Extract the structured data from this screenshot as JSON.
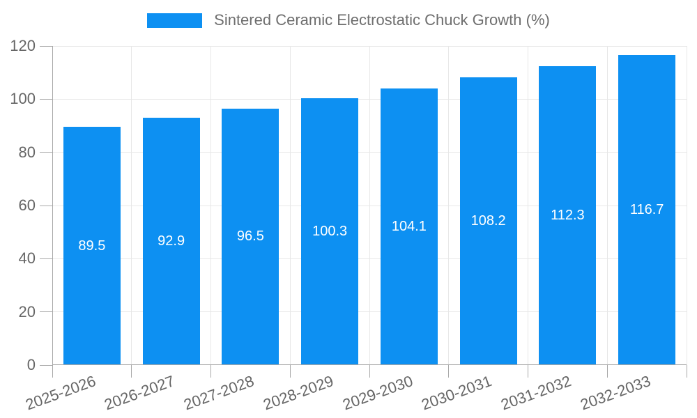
{
  "legend": {
    "label": "Sintered Ceramic Electrostatic Chuck Growth (%)"
  },
  "chart_data": {
    "type": "bar",
    "title": "Sintered Ceramic Electrostatic Chuck Growth (%)",
    "categories": [
      "2025-2026",
      "2026-2027",
      "2027-2028",
      "2028-2029",
      "2029-2030",
      "2030-2031",
      "2031-2032",
      "2032-2033"
    ],
    "values": [
      89.5,
      92.9,
      96.5,
      100.3,
      104.1,
      108.2,
      112.3,
      116.7
    ],
    "value_labels": [
      "89.5",
      "92.9",
      "96.5",
      "100.3",
      "104.1",
      "108.2",
      "112.3",
      "116.7"
    ],
    "xlabel": "",
    "ylabel": "",
    "ylim": [
      0,
      120
    ],
    "y_ticks": [
      0,
      20,
      40,
      60,
      80,
      100,
      120
    ],
    "grid": true,
    "legend_position": "top"
  },
  "colors": {
    "bar": "#0d90f2",
    "grid": "#e7e7e7",
    "axis": "#a8a8a8",
    "axis_text": "#666666",
    "legend_text": "#6e6e6e",
    "value_text": "#ffffff",
    "background": "#ffffff"
  }
}
